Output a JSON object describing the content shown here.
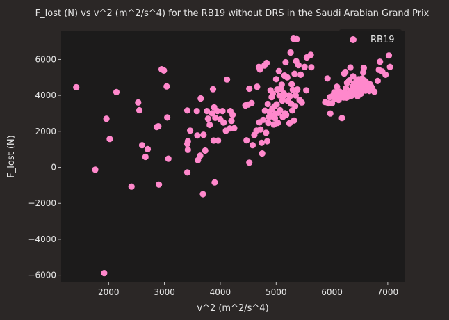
{
  "chart_data": {
    "type": "scatter",
    "title": "F_lost (N) vs v^2 (m^2/s^4) for the RB19 without DRS in the Saudi Arabian Grand Prix",
    "xlabel": "v^2 (m^2/s^4)",
    "ylabel": "F_lost (N)",
    "xlim": [
      1150,
      7300
    ],
    "ylim": [
      -6400,
      7600
    ],
    "xticks": [
      2000,
      3000,
      4000,
      5000,
      6000,
      7000
    ],
    "yticks": [
      -6000,
      -4000,
      -2000,
      0,
      2000,
      4000,
      6000
    ],
    "xtick_labels": [
      "2000",
      "3000",
      "4000",
      "5000",
      "6000",
      "7000"
    ],
    "ytick_labels": [
      "−6000",
      "−4000",
      "−2000",
      "0",
      "2000",
      "4000",
      "6000"
    ],
    "grid": false,
    "legend_position": "top-right",
    "colors": {
      "figure_bg": "#2b2726",
      "axes_bg": "#1c1b1b",
      "text": "#e6e6e6",
      "marker": "#ff88cc"
    },
    "series": [
      {
        "name": "RB19",
        "points": [
          [
            1420,
            4450
          ],
          [
            1760,
            -130
          ],
          [
            1920,
            -5880
          ],
          [
            1960,
            2700
          ],
          [
            2020,
            1580
          ],
          [
            2140,
            4180
          ],
          [
            2410,
            -1070
          ],
          [
            2530,
            3600
          ],
          [
            2550,
            3170
          ],
          [
            2600,
            1230
          ],
          [
            2660,
            580
          ],
          [
            2700,
            1010
          ],
          [
            2860,
            2240
          ],
          [
            2890,
            2280
          ],
          [
            2900,
            -960
          ],
          [
            2950,
            5450
          ],
          [
            2990,
            5380
          ],
          [
            3040,
            4500
          ],
          [
            3050,
            2770
          ],
          [
            3070,
            480
          ],
          [
            3410,
            -280
          ],
          [
            3410,
            1300
          ],
          [
            3420,
            1450
          ],
          [
            3410,
            3160
          ],
          [
            3420,
            970
          ],
          [
            3460,
            2040
          ],
          [
            3580,
            3130
          ],
          [
            3590,
            1770
          ],
          [
            3600,
            400
          ],
          [
            3640,
            650
          ],
          [
            3650,
            3830
          ],
          [
            3690,
            -1490
          ],
          [
            3700,
            1810
          ],
          [
            3730,
            930
          ],
          [
            3760,
            3130
          ],
          [
            3780,
            2700
          ],
          [
            3810,
            2360
          ],
          [
            3850,
            3000
          ],
          [
            3870,
            4340
          ],
          [
            3880,
            1490
          ],
          [
            3890,
            3330
          ],
          [
            3900,
            -840
          ],
          [
            3910,
            2750
          ],
          [
            3950,
            3130
          ],
          [
            3960,
            1490
          ],
          [
            4000,
            2670
          ],
          [
            4040,
            3130
          ],
          [
            4060,
            2490
          ],
          [
            4100,
            2030
          ],
          [
            4120,
            4880
          ],
          [
            4170,
            2160
          ],
          [
            4180,
            3130
          ],
          [
            4200,
            2580
          ],
          [
            4220,
            2920
          ],
          [
            4250,
            2170
          ],
          [
            4450,
            3440
          ],
          [
            4470,
            1500
          ],
          [
            4500,
            3490
          ],
          [
            4520,
            260
          ],
          [
            4520,
            4370
          ],
          [
            4560,
            3570
          ],
          [
            4580,
            1230
          ],
          [
            4610,
            1800
          ],
          [
            4650,
            2040
          ],
          [
            4660,
            4480
          ],
          [
            4690,
            5580
          ],
          [
            4700,
            2500
          ],
          [
            4710,
            5440
          ],
          [
            4720,
            2100
          ],
          [
            4740,
            1360
          ],
          [
            4750,
            770
          ],
          [
            4770,
            2640
          ],
          [
            4790,
            5660
          ],
          [
            4800,
            3150
          ],
          [
            4820,
            1920
          ],
          [
            4830,
            5800
          ],
          [
            4840,
            1450
          ],
          [
            4850,
            3520
          ],
          [
            4860,
            2470
          ],
          [
            4870,
            2800
          ],
          [
            4880,
            3080
          ],
          [
            4900,
            4280
          ],
          [
            4910,
            2830
          ],
          [
            4920,
            3900
          ],
          [
            4930,
            3250
          ],
          [
            4940,
            4090
          ],
          [
            4960,
            2380
          ],
          [
            4970,
            3390
          ],
          [
            4980,
            2730
          ],
          [
            4990,
            2990
          ],
          [
            5000,
            4900
          ],
          [
            5010,
            3500
          ],
          [
            5020,
            4330
          ],
          [
            5030,
            2470
          ],
          [
            5040,
            3020
          ],
          [
            5050,
            5350
          ],
          [
            5060,
            4000
          ],
          [
            5070,
            3180
          ],
          [
            5080,
            4370
          ],
          [
            5100,
            4590
          ],
          [
            5110,
            3710
          ],
          [
            5120,
            2800
          ],
          [
            5130,
            3960
          ],
          [
            5140,
            4100
          ],
          [
            5150,
            5100
          ],
          [
            5160,
            3000
          ],
          [
            5170,
            5840
          ],
          [
            5180,
            2910
          ],
          [
            5200,
            5000
          ],
          [
            5210,
            3690
          ],
          [
            5230,
            4000
          ],
          [
            5240,
            2450
          ],
          [
            5250,
            3960
          ],
          [
            5260,
            6380
          ],
          [
            5270,
            3530
          ],
          [
            5280,
            4620
          ],
          [
            5290,
            3160
          ],
          [
            5300,
            4300
          ],
          [
            5310,
            7150
          ],
          [
            5320,
            2600
          ],
          [
            5330,
            5200
          ],
          [
            5340,
            3400
          ],
          [
            5350,
            4000
          ],
          [
            5360,
            5900
          ],
          [
            5370,
            7130
          ],
          [
            5380,
            4330
          ],
          [
            5400,
            5680
          ],
          [
            5420,
            3740
          ],
          [
            5440,
            5150
          ],
          [
            5460,
            3600
          ],
          [
            5510,
            5580
          ],
          [
            5540,
            4280
          ],
          [
            5550,
            6110
          ],
          [
            5620,
            6250
          ],
          [
            5630,
            5560
          ],
          [
            5880,
            3620
          ],
          [
            5920,
            4940
          ],
          [
            5940,
            3560
          ],
          [
            5960,
            3900
          ],
          [
            5970,
            2990
          ],
          [
            6000,
            3560
          ],
          [
            6020,
            3990
          ],
          [
            6040,
            4170
          ],
          [
            6060,
            3800
          ],
          [
            6080,
            4100
          ],
          [
            6090,
            4480
          ],
          [
            6110,
            3920
          ],
          [
            6120,
            3750
          ],
          [
            6140,
            4200
          ],
          [
            6150,
            3880
          ],
          [
            6170,
            4130
          ],
          [
            6180,
            2740
          ],
          [
            6200,
            4030
          ],
          [
            6210,
            3880
          ],
          [
            6220,
            5210
          ],
          [
            6230,
            4150
          ],
          [
            6240,
            5300
          ],
          [
            6250,
            4400
          ],
          [
            6260,
            3870
          ],
          [
            6270,
            4690
          ],
          [
            6280,
            4000
          ],
          [
            6300,
            3930
          ],
          [
            6310,
            4830
          ],
          [
            6320,
            4100
          ],
          [
            6330,
            5550
          ],
          [
            6340,
            4280
          ],
          [
            6350,
            3980
          ],
          [
            6370,
            4500
          ],
          [
            6380,
            5050
          ],
          [
            6390,
            4150
          ],
          [
            6400,
            4660
          ],
          [
            6420,
            4350
          ],
          [
            6430,
            4050
          ],
          [
            6440,
            4780
          ],
          [
            6450,
            4400
          ],
          [
            6460,
            3950
          ],
          [
            6480,
            4900
          ],
          [
            6490,
            4530
          ],
          [
            6500,
            4250
          ],
          [
            6510,
            4680
          ],
          [
            6520,
            4100
          ],
          [
            6530,
            4370
          ],
          [
            6540,
            4940
          ],
          [
            6550,
            4600
          ],
          [
            6560,
            5280
          ],
          [
            6570,
            5530
          ],
          [
            6580,
            4500
          ],
          [
            6590,
            4800
          ],
          [
            6600,
            4270
          ],
          [
            6620,
            4700
          ],
          [
            6640,
            4550
          ],
          [
            6660,
            4400
          ],
          [
            6670,
            4250
          ],
          [
            6680,
            4620
          ],
          [
            6700,
            4500
          ],
          [
            6720,
            4400
          ],
          [
            6760,
            4200
          ],
          [
            6820,
            4800
          ],
          [
            6840,
            5420
          ],
          [
            6860,
            5870
          ],
          [
            6900,
            5330
          ],
          [
            6960,
            5150
          ],
          [
            7020,
            6220
          ],
          [
            7040,
            5580
          ]
        ]
      }
    ]
  }
}
